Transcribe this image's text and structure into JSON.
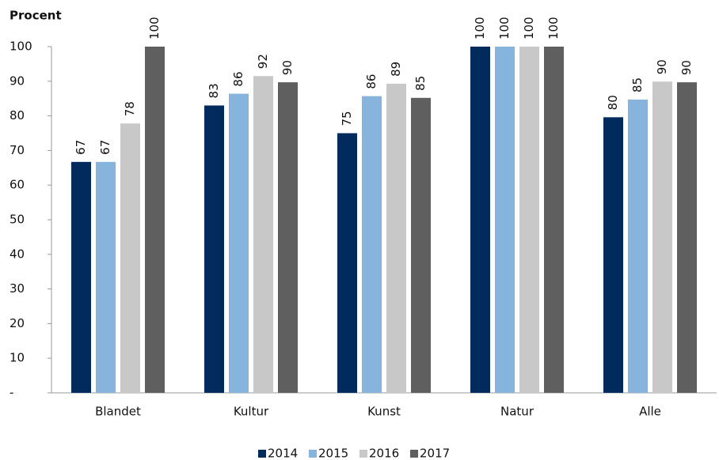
{
  "chart_data": {
    "type": "bar",
    "y_label": "Procent",
    "categories": [
      "Blandet",
      "Kultur",
      "Kunst",
      "Natur",
      "Alle"
    ],
    "series": [
      {
        "name": "2014",
        "color": "#002b5c",
        "values": [
          66.7,
          83.0,
          75.0,
          100,
          79.6
        ],
        "value_labels": [
          "67",
          "83",
          "75",
          "100",
          "80"
        ]
      },
      {
        "name": "2015",
        "color": "#86b4dd",
        "values": [
          66.7,
          86.4,
          85.7,
          100,
          84.7
        ],
        "value_labels": [
          "67",
          "86",
          "86",
          "100",
          "85"
        ]
      },
      {
        "name": "2016",
        "color": "#c8c8c8",
        "values": [
          77.8,
          91.5,
          89.3,
          100,
          89.9
        ],
        "value_labels": [
          "78",
          "92",
          "89",
          "100",
          "90"
        ]
      },
      {
        "name": "2017",
        "color": "#5f5f5f",
        "values": [
          100,
          89.7,
          85.2,
          100,
          89.7
        ],
        "value_labels": [
          "100",
          "90",
          "85",
          "100",
          "90"
        ]
      }
    ],
    "ylim": [
      0,
      100
    ],
    "yticks": [
      {
        "value": 0,
        "label": "-"
      },
      10,
      20,
      30,
      40,
      50,
      60,
      70,
      80,
      90,
      100
    ],
    "grid": false,
    "legend": "bottom"
  }
}
